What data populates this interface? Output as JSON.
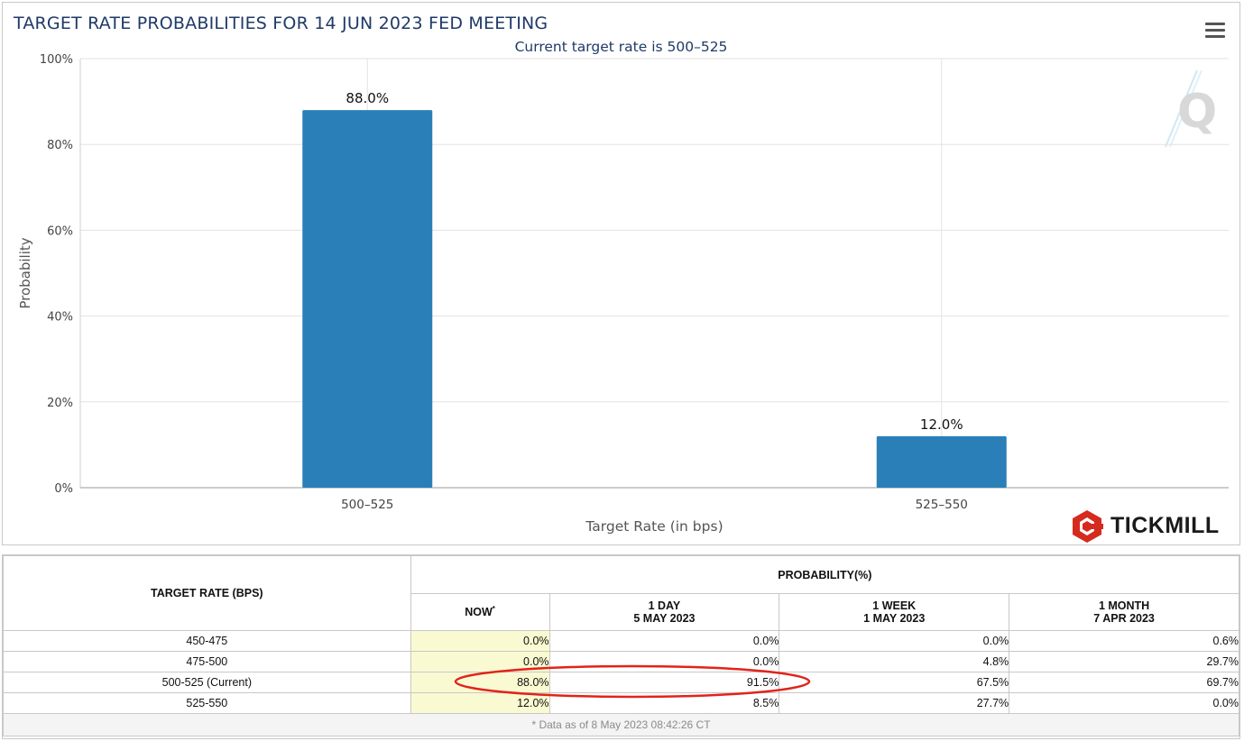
{
  "chart_data": {
    "type": "bar",
    "title": "TARGET RATE PROBABILITIES FOR 14 JUN 2023 FED MEETING",
    "subtitle": "Current target rate is 500–525",
    "xlabel": "Target Rate (in bps)",
    "ylabel": "Probability",
    "categories": [
      "500–525",
      "525–550"
    ],
    "values": [
      88.0,
      12.0
    ],
    "data_labels": [
      "88.0%",
      "12.0%"
    ],
    "ylim": [
      0,
      100
    ],
    "yticks": [
      {
        "value": 0,
        "label": "0%"
      },
      {
        "value": 20,
        "label": "20%"
      },
      {
        "value": 40,
        "label": "40%"
      },
      {
        "value": 60,
        "label": "60%"
      },
      {
        "value": 80,
        "label": "80%"
      },
      {
        "value": 100,
        "label": "100%"
      }
    ],
    "bar_color": "#2a7fb8",
    "grid": true
  },
  "branding": {
    "logo_text": "TICKMILL",
    "logo_color": "#d52b1e"
  },
  "table": {
    "col_header_rate": "TARGET RATE (BPS)",
    "col_header_prob": "PROBABILITY(%)",
    "sub_headers": [
      {
        "line1": "NOW",
        "line2": "",
        "marker": "*"
      },
      {
        "line1": "1 DAY",
        "line2": "5 MAY 2023",
        "marker": ""
      },
      {
        "line1": "1 WEEK",
        "line2": "1 MAY 2023",
        "marker": ""
      },
      {
        "line1": "1 MONTH",
        "line2": "7 APR 2023",
        "marker": ""
      }
    ],
    "rows": [
      {
        "rate": "450-475",
        "values": [
          "0.0%",
          "0.0%",
          "0.0%",
          "0.6%"
        ]
      },
      {
        "rate": "475-500",
        "values": [
          "0.0%",
          "0.0%",
          "4.8%",
          "29.7%"
        ]
      },
      {
        "rate": "500-525 (Current)",
        "values": [
          "88.0%",
          "91.5%",
          "67.5%",
          "69.7%"
        ]
      },
      {
        "rate": "525-550",
        "values": [
          "12.0%",
          "8.5%",
          "27.7%",
          "0.0%"
        ]
      }
    ],
    "footnote": "* Data as of 8 May 2023 08:42:26 CT",
    "now_highlight_color": "#fafad2",
    "annotation_color": "#e2231a"
  }
}
